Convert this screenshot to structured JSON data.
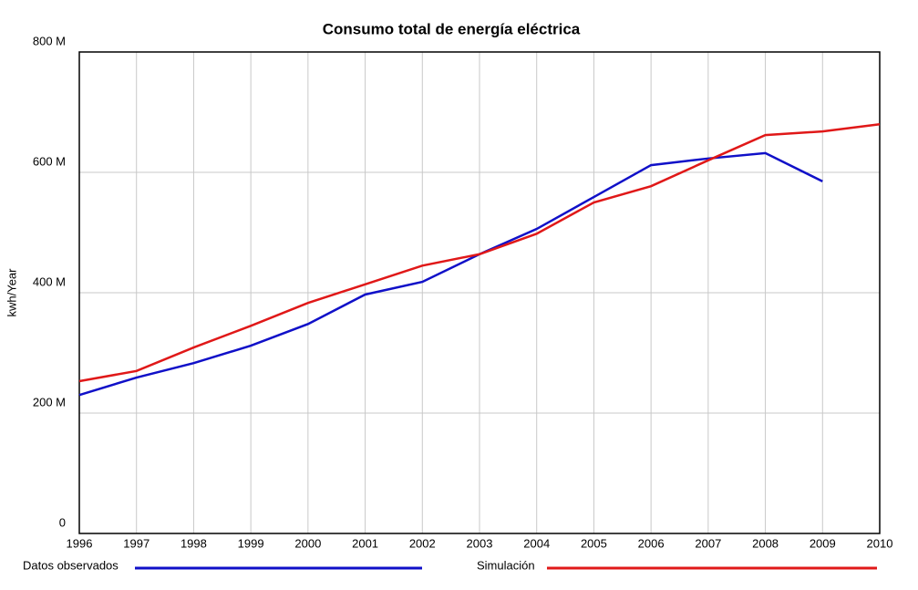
{
  "chart_data": {
    "type": "line",
    "title": "Consumo total de energía eléctrica",
    "y_label": "kwh/Year",
    "x": [
      1996,
      1997,
      1998,
      1999,
      2000,
      2001,
      2002,
      2003,
      2004,
      2005,
      2006,
      2007,
      2008,
      2009,
      2010
    ],
    "xlim": [
      1996,
      2010
    ],
    "xticks": [
      1996,
      1997,
      1998,
      1999,
      2000,
      2001,
      2002,
      2003,
      2004,
      2005,
      2006,
      2007,
      2008,
      2009,
      2010
    ],
    "ylim": [
      0,
      800000000
    ],
    "yticks": [
      0,
      {
        "value": 200000000,
        "label": "200 M"
      },
      {
        "value": 400000000,
        "label": "400 M"
      },
      {
        "value": 600000000,
        "label": "600 M"
      },
      {
        "value": 800000000,
        "label": "800 M"
      }
    ],
    "grid": true,
    "legend": "bottom",
    "series": [
      {
        "name": "Datos observados",
        "color": "#1010c8",
        "values": [
          230000000,
          259000000,
          283000000,
          312000000,
          348000000,
          397000000,
          418000000,
          464000000,
          506000000,
          559000000,
          612000000,
          623000000,
          632000000,
          585000000,
          null
        ]
      },
      {
        "name": "Simulación",
        "color": "#e01818",
        "values": [
          253000000,
          270000000,
          309000000,
          345000000,
          383000000,
          414000000,
          445000000,
          464000000,
          498000000,
          550000000,
          577000000,
          620000000,
          662000000,
          668000000,
          680000000
        ]
      }
    ]
  }
}
